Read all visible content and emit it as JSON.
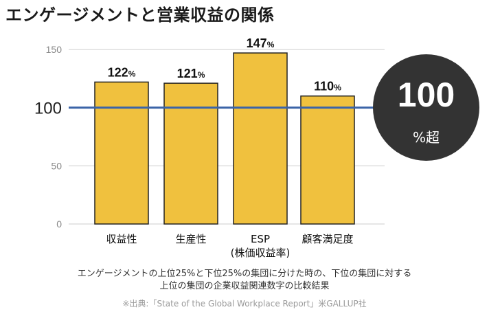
{
  "title": "エンゲージメントと営業収益の関係",
  "chart_data": {
    "type": "bar",
    "categories": [
      "収益性",
      "生産性",
      "ESP\n(株価収益率)",
      "顧客満足度"
    ],
    "values": [
      122,
      121,
      147,
      110
    ],
    "value_labels": [
      "122",
      "121",
      "147",
      "110"
    ],
    "value_unit": "%",
    "yticks": [
      0,
      50,
      100,
      150
    ],
    "ylim": [
      0,
      150
    ],
    "reference_line": 100,
    "grid": true,
    "bar_color": "#F0C13E",
    "reference_color": "#3A63A8"
  },
  "badge": {
    "value": "100",
    "unit": "%超"
  },
  "caption": {
    "line1": "エンゲージメントの上位25%と下位25%の集団に分けた時の、下位の集団に対する",
    "line2": "上位の集団の企業収益関連数字の比較結果"
  },
  "source": "※出典:「State of the Global Workplace Report」米GALLUP社",
  "colors": {
    "badge_bg": "#333333",
    "text": "#1a1a1a"
  }
}
